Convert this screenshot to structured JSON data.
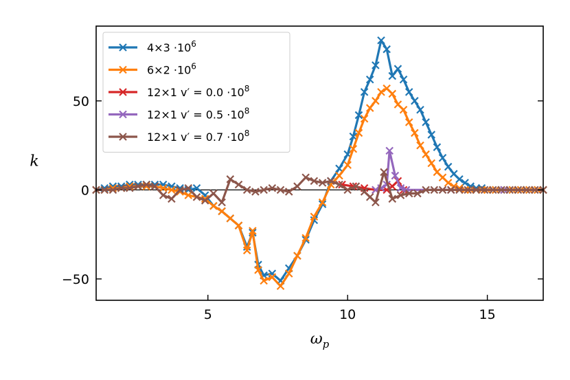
{
  "chart_data": {
    "type": "line",
    "title": "",
    "xlabel": "ω",
    "xlabel_sub": "p",
    "ylabel": "k",
    "xlim": [
      1,
      17
    ],
    "ylim": [
      -62,
      92
    ],
    "xticks": [
      5,
      10,
      15
    ],
    "yticks": [
      -50,
      0,
      50
    ],
    "grid": false,
    "legend_position": "top-left",
    "series": [
      {
        "name": "4×3  ·10⁶",
        "legend": {
          "main": "4×3  ·10",
          "exp": "6"
        },
        "color": "#1f77b4",
        "x": [
          1.0,
          1.3,
          1.6,
          1.9,
          2.2,
          2.5,
          2.8,
          3.1,
          3.4,
          3.7,
          4.0,
          4.3,
          4.6,
          4.9,
          5.2,
          5.5,
          5.8,
          6.1,
          6.4,
          6.6,
          6.8,
          7.0,
          7.3,
          7.6,
          7.9,
          8.2,
          8.5,
          8.8,
          9.1,
          9.4,
          9.7,
          10.0,
          10.2,
          10.4,
          10.6,
          10.8,
          11.0,
          11.2,
          11.4,
          11.6,
          11.8,
          12.0,
          12.2,
          12.4,
          12.6,
          12.8,
          13.0,
          13.2,
          13.4,
          13.6,
          13.8,
          14.0,
          14.2,
          14.4,
          14.6,
          14.8,
          15.0,
          15.3,
          15.6,
          15.9,
          16.2,
          16.5,
          16.8,
          17.0
        ],
        "y": [
          0,
          1,
          2,
          2,
          3,
          3,
          3,
          3,
          3,
          2,
          1,
          0,
          1,
          -3,
          -9,
          -12,
          -16,
          -20,
          -32,
          -24,
          -42,
          -48,
          -47,
          -51,
          -44,
          -37,
          -28,
          -17,
          -8,
          5,
          12,
          20,
          30,
          42,
          55,
          62,
          70,
          84,
          79,
          64,
          68,
          62,
          55,
          50,
          45,
          38,
          31,
          24,
          18,
          13,
          9,
          6,
          4,
          2,
          1,
          1,
          0,
          0,
          0,
          0,
          0,
          0,
          0,
          0
        ]
      },
      {
        "name": "6×2  ·10⁶",
        "legend": {
          "main": "6×2  ·10",
          "exp": "6"
        },
        "color": "#ff7f0e",
        "x": [
          1.0,
          1.3,
          1.6,
          1.9,
          2.2,
          2.5,
          2.8,
          3.1,
          3.4,
          3.7,
          4.0,
          4.3,
          4.6,
          4.9,
          5.2,
          5.5,
          5.8,
          6.1,
          6.4,
          6.6,
          6.8,
          7.0,
          7.3,
          7.6,
          7.9,
          8.2,
          8.5,
          8.8,
          9.1,
          9.4,
          9.7,
          10.0,
          10.2,
          10.4,
          10.6,
          10.8,
          11.0,
          11.2,
          11.4,
          11.6,
          11.8,
          12.0,
          12.2,
          12.4,
          12.6,
          12.8,
          13.0,
          13.2,
          13.4,
          13.6,
          13.8,
          14.0,
          14.2,
          14.4,
          14.6,
          14.8,
          15.0,
          15.3,
          15.6,
          15.9,
          16.2,
          16.5,
          16.8,
          17.0
        ],
        "y": [
          0,
          0,
          1,
          1,
          2,
          2,
          2,
          2,
          1,
          0,
          -1,
          -3,
          -4,
          -5,
          -9,
          -12,
          -16,
          -20,
          -34,
          -23,
          -45,
          -51,
          -49,
          -54,
          -47,
          -37,
          -27,
          -15,
          -7,
          3,
          8,
          14,
          23,
          32,
          40,
          46,
          50,
          55,
          57,
          54,
          48,
          45,
          38,
          32,
          25,
          20,
          15,
          10,
          7,
          4,
          2,
          1,
          0,
          0,
          0,
          0,
          0,
          0,
          0,
          0,
          0,
          0,
          0,
          0
        ]
      },
      {
        "name": "12×1 v′ = 0.0  ·10⁸",
        "legend": {
          "main": "12×1 v′ = 0.0  ·10",
          "exp": "8"
        },
        "color": "#d62728",
        "x": [
          9.8,
          10.2,
          10.6,
          11.0,
          11.4,
          11.6,
          11.8,
          12.0
        ],
        "y": [
          3,
          2,
          1,
          0,
          0,
          2,
          5,
          0
        ]
      },
      {
        "name": "12×1 v′ = 0.5  ·10⁸",
        "legend": {
          "main": "12×1 v′ = 0.5  ·10",
          "exp": "8"
        },
        "color": "#9467bd",
        "x": [
          11.0,
          11.2,
          11.4,
          11.5,
          11.7,
          11.9,
          12.1,
          13.7,
          15.6
        ],
        "y": [
          0,
          1,
          3,
          22,
          8,
          1,
          0,
          0,
          0
        ]
      },
      {
        "name": "12×1 v′ = 0.7  ·10⁸",
        "legend": {
          "main": "12×1 v′ = 0.7  ·10",
          "exp": "8"
        },
        "color": "#8c564b",
        "x": [
          1.0,
          1.3,
          1.6,
          1.9,
          2.2,
          2.5,
          2.8,
          3.1,
          3.4,
          3.7,
          4.0,
          4.3,
          4.6,
          4.9,
          5.2,
          5.5,
          5.8,
          6.1,
          6.4,
          6.7,
          7.0,
          7.3,
          7.6,
          7.9,
          8.2,
          8.5,
          8.8,
          9.1,
          9.4,
          9.7,
          10.0,
          10.3,
          10.6,
          10.8,
          11.0,
          11.3,
          11.6,
          11.9,
          12.2,
          12.5,
          12.8,
          13.1,
          13.4,
          13.7,
          14.0,
          14.3,
          14.6,
          14.9,
          15.2,
          15.5,
          15.8,
          16.1,
          16.4,
          16.7,
          17.0
        ],
        "y": [
          0,
          0,
          0,
          1,
          1,
          2,
          3,
          2,
          -3,
          -5,
          0,
          1,
          -4,
          -6,
          -2,
          -7,
          6,
          3,
          0,
          -1,
          0,
          1,
          0,
          -1,
          2,
          7,
          5,
          4,
          5,
          3,
          0,
          2,
          -1,
          -4,
          -7,
          10,
          -5,
          -3,
          -2,
          -2,
          0,
          0,
          0,
          0,
          0,
          0,
          0,
          0,
          0,
          0,
          0,
          0,
          0,
          0,
          0
        ]
      }
    ]
  }
}
